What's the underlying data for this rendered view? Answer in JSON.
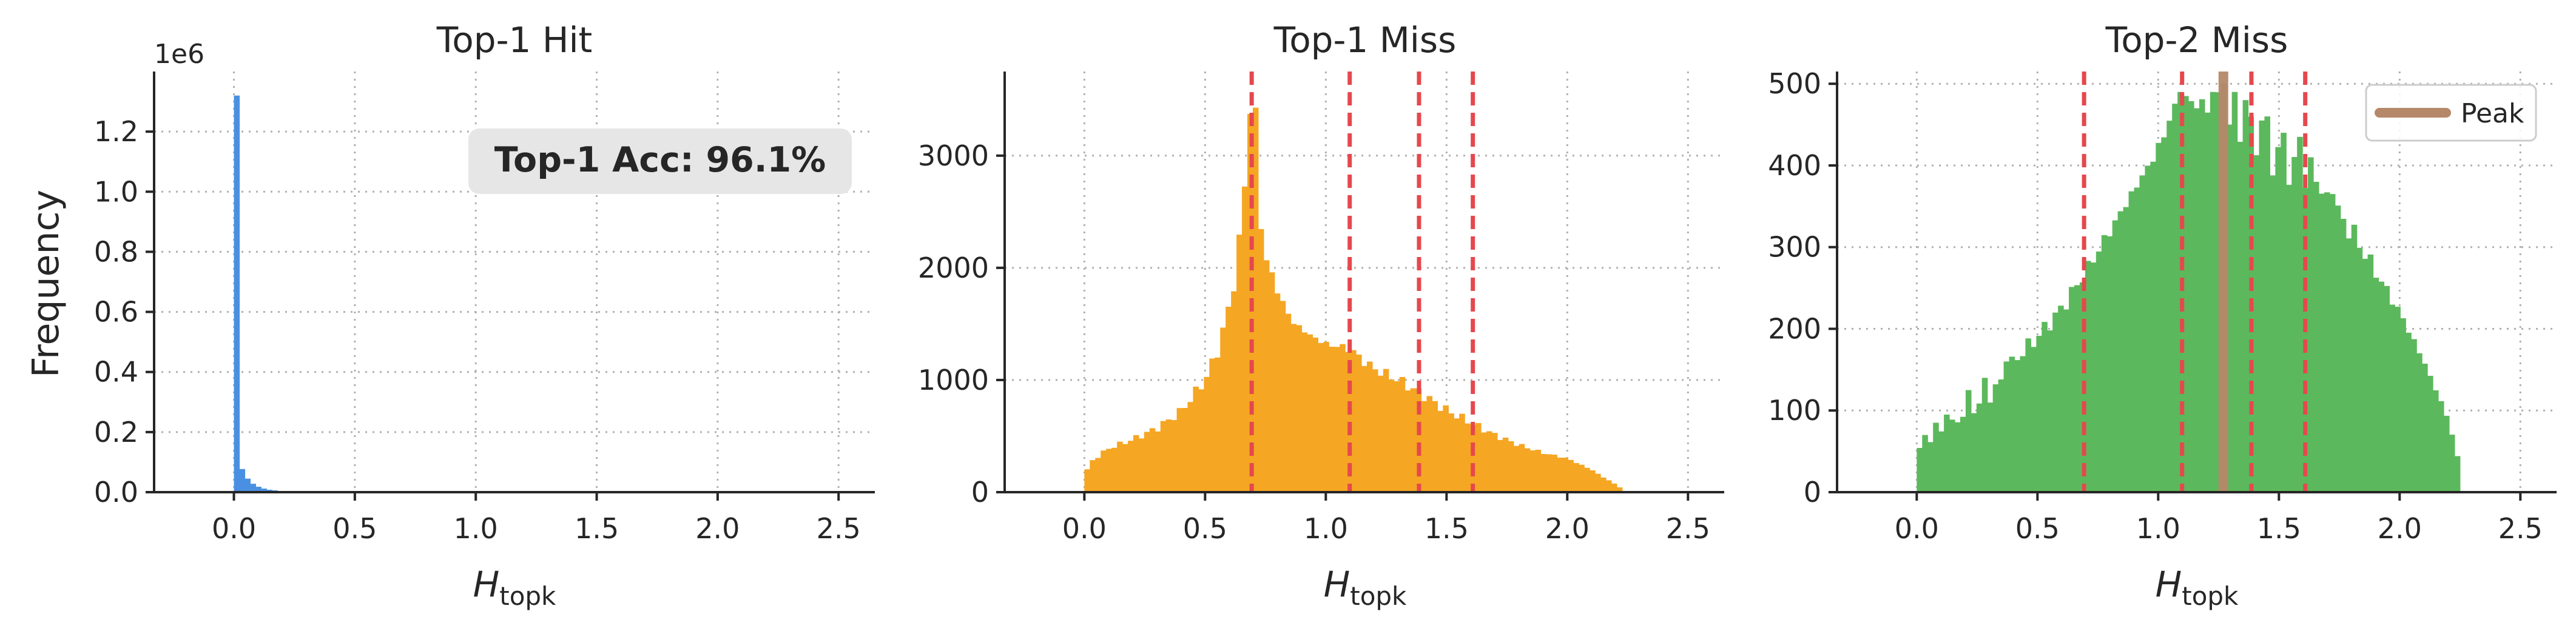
{
  "chart_data": [
    {
      "type": "histogram",
      "title": "Top-1 Hit",
      "xlabel": "H_topk",
      "ylabel": "Frequency",
      "y_offset_text": "1e6",
      "xlim": [
        -0.33,
        2.65
      ],
      "ylim": [
        0,
        1.4
      ],
      "xticks": [
        0.0,
        0.5,
        1.0,
        1.5,
        2.0,
        2.5
      ],
      "xtick_labels": [
        "0.0",
        "0.5",
        "1.0",
        "1.5",
        "2.0",
        "2.5"
      ],
      "yticks": [
        0.0,
        0.2,
        0.4,
        0.6,
        0.8,
        1.0,
        1.2
      ],
      "ytick_labels": [
        "0.0",
        "0.2",
        "0.4",
        "0.6",
        "0.8",
        "1.0",
        "1.2"
      ],
      "color": "#4a90e2",
      "grid": true,
      "bin_width": 0.0225,
      "bins": [
        {
          "x": 0.0,
          "y": 1.32
        },
        {
          "x": 0.0225,
          "y": 0.077
        },
        {
          "x": 0.045,
          "y": 0.045
        },
        {
          "x": 0.0675,
          "y": 0.028
        },
        {
          "x": 0.09,
          "y": 0.018
        },
        {
          "x": 0.1125,
          "y": 0.012
        },
        {
          "x": 0.135,
          "y": 0.008
        },
        {
          "x": 0.1575,
          "y": 0.006
        },
        {
          "x": 0.18,
          "y": 0.004
        },
        {
          "x": 0.2025,
          "y": 0.003
        },
        {
          "x": 0.225,
          "y": 0.002
        },
        {
          "x": 0.2475,
          "y": 0.0015
        },
        {
          "x": 0.27,
          "y": 0.001
        },
        {
          "x": 0.2925,
          "y": 0.0008
        },
        {
          "x": 0.315,
          "y": 0.0005
        }
      ],
      "annotation": "Top-1 Acc: 96.1%"
    },
    {
      "type": "histogram",
      "title": "Top-1 Miss",
      "xlabel": "H_topk",
      "xlim": [
        -0.33,
        2.65
      ],
      "ylim": [
        0,
        3750
      ],
      "xticks": [
        0.0,
        0.5,
        1.0,
        1.5,
        2.0,
        2.5
      ],
      "xtick_labels": [
        "0.0",
        "0.5",
        "1.0",
        "1.5",
        "2.0",
        "2.5"
      ],
      "yticks": [
        0,
        1000,
        2000,
        3000
      ],
      "ytick_labels": [
        "0",
        "1000",
        "2000",
        "3000"
      ],
      "color": "#f5a623",
      "grid": true,
      "vlines": [
        0.693,
        1.099,
        1.386,
        1.609
      ],
      "vline_color": "#e5484d",
      "bin_width": 0.0225,
      "curve": [
        [
          0.0,
          120
        ],
        [
          0.02,
          260
        ],
        [
          0.1,
          390
        ],
        [
          0.2,
          470
        ],
        [
          0.3,
          570
        ],
        [
          0.4,
          720
        ],
        [
          0.5,
          1000
        ],
        [
          0.55,
          1250
        ],
        [
          0.6,
          1650
        ],
        [
          0.63,
          2000
        ],
        [
          0.66,
          2600
        ],
        [
          0.685,
          3450
        ],
        [
          0.695,
          3560
        ],
        [
          0.71,
          3300
        ],
        [
          0.73,
          2400
        ],
        [
          0.76,
          2000
        ],
        [
          0.8,
          1800
        ],
        [
          0.85,
          1550
        ],
        [
          0.9,
          1450
        ],
        [
          0.95,
          1380
        ],
        [
          1.0,
          1320
        ],
        [
          1.05,
          1300
        ],
        [
          1.1,
          1280
        ],
        [
          1.15,
          1180
        ],
        [
          1.2,
          1100
        ],
        [
          1.3,
          1000
        ],
        [
          1.4,
          870
        ],
        [
          1.5,
          730
        ],
        [
          1.6,
          620
        ],
        [
          1.7,
          510
        ],
        [
          1.8,
          420
        ],
        [
          1.9,
          350
        ],
        [
          2.0,
          300
        ],
        [
          2.05,
          250
        ],
        [
          2.1,
          200
        ],
        [
          2.15,
          130
        ],
        [
          2.2,
          70
        ],
        [
          2.23,
          20
        ]
      ]
    },
    {
      "type": "histogram",
      "title": "Top-2 Miss",
      "xlabel": "H_topk",
      "xlim": [
        -0.33,
        2.65
      ],
      "ylim": [
        0,
        515
      ],
      "xticks": [
        0.0,
        0.5,
        1.0,
        1.5,
        2.0,
        2.5
      ],
      "xtick_labels": [
        "0.0",
        "0.5",
        "1.0",
        "1.5",
        "2.0",
        "2.5"
      ],
      "yticks": [
        0,
        100,
        200,
        300,
        400,
        500
      ],
      "ytick_labels": [
        "0",
        "100",
        "200",
        "300",
        "400",
        "500"
      ],
      "color": "#5cb85c",
      "grid": true,
      "vlines": [
        0.693,
        1.099,
        1.386,
        1.609
      ],
      "vline_color": "#e5484d",
      "peak": 1.27,
      "peak_color": "#b5886a",
      "legend": {
        "position": "top-right",
        "label": "Peak"
      },
      "bin_width": 0.0225,
      "curve": [
        [
          0.0,
          50
        ],
        [
          0.1,
          75
        ],
        [
          0.2,
          95
        ],
        [
          0.3,
          115
        ],
        [
          0.4,
          160
        ],
        [
          0.5,
          190
        ],
        [
          0.6,
          225
        ],
        [
          0.7,
          270
        ],
        [
          0.8,
          320
        ],
        [
          0.9,
          370
        ],
        [
          1.0,
          420
        ],
        [
          1.05,
          460
        ],
        [
          1.1,
          475
        ],
        [
          1.2,
          465
        ],
        [
          1.27,
          470
        ],
        [
          1.3,
          455
        ],
        [
          1.4,
          440
        ],
        [
          1.5,
          400
        ],
        [
          1.6,
          380
        ],
        [
          1.7,
          355
        ],
        [
          1.8,
          320
        ],
        [
          1.9,
          270
        ],
        [
          2.0,
          220
        ],
        [
          2.1,
          160
        ],
        [
          2.2,
          90
        ],
        [
          2.25,
          30
        ]
      ],
      "spikes": [
        [
          1.1,
          490
        ],
        [
          1.12,
          485
        ],
        [
          1.15,
          470
        ],
        [
          1.19,
          470
        ],
        [
          1.22,
          490
        ],
        [
          1.28,
          500
        ],
        [
          1.32,
          490
        ],
        [
          1.35,
          480
        ],
        [
          1.42,
          455
        ],
        [
          1.45,
          460
        ],
        [
          1.52,
          440
        ],
        [
          1.58,
          435
        ],
        [
          1.62,
          410
        ],
        [
          1.65,
          380
        ],
        [
          1.72,
          365
        ],
        [
          0.67,
          225
        ],
        [
          0.58,
          200
        ],
        [
          0.52,
          190
        ],
        [
          0.46,
          170
        ],
        [
          0.38,
          160
        ],
        [
          0.27,
          140
        ],
        [
          0.22,
          125
        ],
        [
          0.13,
          95
        ],
        [
          0.08,
          85
        ],
        [
          0.03,
          70
        ]
      ]
    }
  ]
}
